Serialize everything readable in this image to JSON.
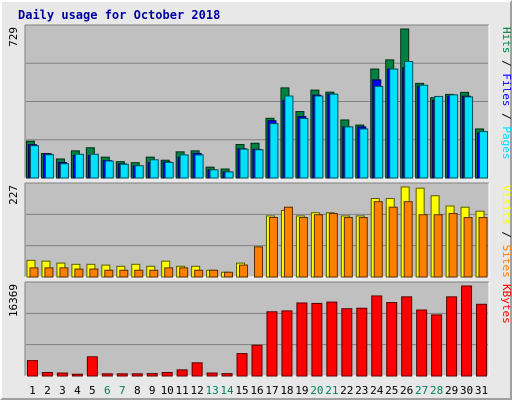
{
  "title": "Daily usage for October 2018",
  "colors": {
    "hits": "#008040",
    "files": "#0000ff",
    "pages": "#00e0ff",
    "visits": "#ffff00",
    "sites": "#ff8000",
    "kbytes": "#ff0000",
    "weekend_day": "#00805c",
    "weekday": "#000000",
    "panel_bg": "#c0c0c0",
    "title": "#0000a0"
  },
  "chart_data": [
    {
      "type": "bar",
      "panel": "top",
      "ymax_label": "729",
      "ylim": [
        0,
        729
      ],
      "legend": [
        {
          "text": "Pages",
          "color": "#00e0ff"
        },
        {
          "text": "Files",
          "color": "#0000ff"
        },
        {
          "text": "Hits",
          "color": "#008040"
        }
      ],
      "categories": [
        "1",
        "2",
        "3",
        "4",
        "5",
        "6",
        "7",
        "8",
        "9",
        "10",
        "11",
        "12",
        "13",
        "14",
        "15",
        "16",
        "17",
        "18",
        "19",
        "20",
        "21",
        "22",
        "23",
        "24",
        "25",
        "26",
        "27",
        "28",
        "29",
        "30",
        "31"
      ],
      "weekend_days": [
        "6",
        "7",
        "13",
        "14",
        "20",
        "21",
        "27",
        "28"
      ],
      "series": [
        {
          "name": "Hits",
          "values": [
            180,
            120,
            93,
            133,
            148,
            102,
            80,
            75,
            102,
            87,
            128,
            133,
            53,
            44,
            164,
            170,
            292,
            441,
            325,
            430,
            420,
            284,
            259,
            533,
            578,
            729,
            463,
            393,
            409,
            419,
            240
          ]
        },
        {
          "name": "Files",
          "values": [
            163,
            118,
            76,
            110,
            110,
            85,
            69,
            58,
            76,
            78,
            101,
            120,
            40,
            30,
            143,
            140,
            280,
            380,
            300,
            405,
            410,
            250,
            250,
            480,
            533,
            540,
            450,
            380,
            400,
            400,
            220
          ]
        },
        {
          "name": "Pages",
          "values": [
            158,
            114,
            70,
            116,
            116,
            83,
            67,
            60,
            89,
            76,
            113,
            113,
            40,
            30,
            141,
            138,
            266,
            401,
            291,
            401,
            410,
            250,
            240,
            448,
            533,
            570,
            454,
            399,
            407,
            397,
            227
          ]
        }
      ]
    },
    {
      "type": "bar",
      "panel": "middle",
      "ymax_label": "227",
      "ylim": [
        0,
        227
      ],
      "legend": [
        {
          "text": "Sites",
          "color": "#ff8000"
        },
        {
          "text": "Visits",
          "color": "#ffff00"
        }
      ],
      "categories": [
        "1",
        "2",
        "3",
        "4",
        "5",
        "6",
        "7",
        "8",
        "9",
        "10",
        "11",
        "12",
        "13",
        "14",
        "15",
        "16",
        "17",
        "18",
        "19",
        "20",
        "21",
        "22",
        "23",
        "24",
        "25",
        "26",
        "27",
        "28",
        "29",
        "30",
        "31"
      ],
      "series": [
        {
          "name": "Visits",
          "values": [
            42,
            40,
            35,
            32,
            32,
            30,
            27,
            32,
            27,
            40,
            27,
            27,
            17,
            12,
            35,
            0,
            154,
            168,
            154,
            162,
            162,
            154,
            154,
            198,
            198,
            227,
            224,
            205,
            179,
            176,
            166
          ]
        },
        {
          "name": "Sites",
          "values": [
            23,
            23,
            23,
            20,
            20,
            17,
            17,
            17,
            17,
            23,
            23,
            17,
            17,
            12,
            30,
            76,
            150,
            176,
            150,
            157,
            160,
            150,
            150,
            190,
            176,
            190,
            157,
            157,
            160,
            150,
            150
          ]
        }
      ]
    },
    {
      "type": "bar",
      "panel": "bottom",
      "ymax_label": "16369",
      "ylim": [
        0,
        16369
      ],
      "legend": [
        {
          "text": "KBytes",
          "color": "#ff0000"
        }
      ],
      "categories": [
        "1",
        "2",
        "3",
        "4",
        "5",
        "6",
        "7",
        "8",
        "9",
        "10",
        "11",
        "12",
        "13",
        "14",
        "15",
        "16",
        "17",
        "18",
        "19",
        "20",
        "21",
        "22",
        "23",
        "24",
        "25",
        "26",
        "27",
        "28",
        "29",
        "30",
        "31"
      ],
      "series": [
        {
          "name": "KBytes",
          "values": [
            2800,
            640,
            540,
            320,
            3500,
            400,
            400,
            400,
            440,
            640,
            1120,
            2400,
            540,
            430,
            4080,
            5600,
            11680,
            11840,
            13280,
            13200,
            13440,
            12240,
            12320,
            14560,
            13360,
            14400,
            12000,
            11120,
            14400,
            16369,
            13040
          ]
        }
      ]
    }
  ]
}
